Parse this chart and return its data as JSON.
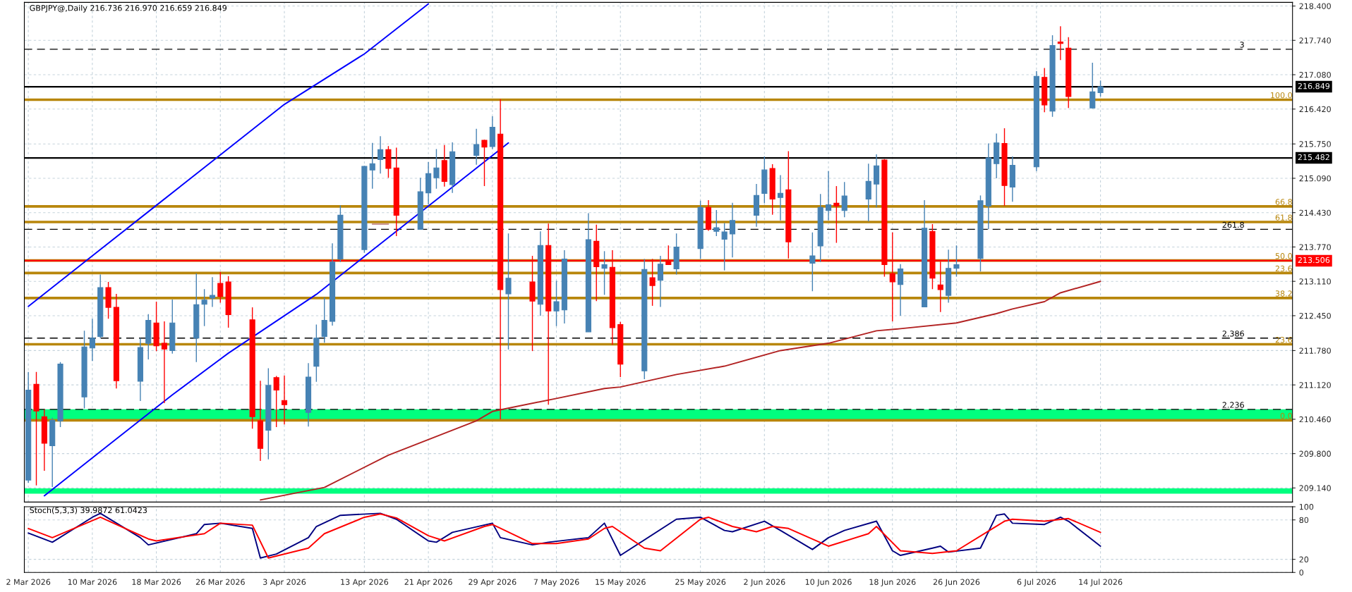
{
  "chart_data": [
    {
      "type": "candlestick",
      "title": "GBPJPY@,Daily 216.736 216.970 216.659 216.849",
      "series": [
        {
          "type": "line",
          "color": "#0000ff",
          "x": [
            "2026-03-02",
            "2026-03-10",
            "2026-03-18",
            "2026-03-26",
            "2026-04-03",
            "2026-04-13",
            "2026-04-21"
          ],
          "values": [
            212.63,
            213.6,
            214.57,
            215.54,
            216.51,
            217.48,
            218.44
          ]
        },
        {
          "type": "line",
          "color": "#0000ff",
          "x": [
            "2026-03-04",
            "2026-03-12",
            "2026-03-20",
            "2026-03-27",
            "2026-04-07",
            "2026-04-15",
            "2026-04-23",
            "2026-05-01"
          ],
          "values": [
            208.99,
            209.96,
            210.93,
            211.73,
            212.86,
            213.83,
            214.8,
            215.77
          ]
        },
        {
          "type": "line",
          "color": "#c89494",
          "x": [
            "2026-04-14",
            "2026-04-16"
          ],
          "values": [
            214.21,
            214.21
          ]
        },
        {
          "type": "line",
          "color": "#b22222",
          "x": [
            "2026-03-31",
            "2026-04-08",
            "2026-04-16",
            "2026-04-27",
            "2026-04-29",
            "2026-05-07",
            "2026-05-13",
            "2026-05-15",
            "2026-05-22",
            "2026-05-28",
            "2026-06-04",
            "2026-06-10",
            "2026-06-16",
            "2026-06-19",
            "2026-06-26",
            "2026-07-01",
            "2026-07-03",
            "2026-07-07",
            "2026-07-09",
            "2026-07-14"
          ],
          "values": [
            208.91,
            209.15,
            209.77,
            210.43,
            210.61,
            210.86,
            211.05,
            211.08,
            211.32,
            211.48,
            211.78,
            211.92,
            212.16,
            212.2,
            212.31,
            212.49,
            212.58,
            212.72,
            212.89,
            213.11
          ]
        },
        {
          "type": "candlestick",
          "x": [
            "2026-03-02",
            "2026-03-03",
            "2026-03-04",
            "2026-03-05",
            "2026-03-06",
            "2026-03-09",
            "2026-03-10",
            "2026-03-11",
            "2026-03-12",
            "2026-03-13",
            "2026-03-16",
            "2026-03-17",
            "2026-03-18",
            "2026-03-19",
            "2026-03-20",
            "2026-03-23",
            "2026-03-24",
            "2026-03-25",
            "2026-03-26",
            "2026-03-27",
            "2026-03-30",
            "2026-03-31",
            "2026-04-01",
            "2026-04-02",
            "2026-04-03",
            "2026-04-06",
            "2026-04-07",
            "2026-04-08",
            "2026-04-09",
            "2026-04-10",
            "2026-04-13",
            "2026-04-14",
            "2026-04-15",
            "2026-04-16",
            "2026-04-17",
            "2026-04-20",
            "2026-04-21",
            "2026-04-22",
            "2026-04-23",
            "2026-04-24",
            "2026-04-27",
            "2026-04-28",
            "2026-04-29",
            "2026-04-30",
            "2026-05-01",
            "2026-05-04",
            "2026-05-05",
            "2026-05-06",
            "2026-05-07",
            "2026-05-08",
            "2026-05-11",
            "2026-05-12",
            "2026-05-13",
            "2026-05-14",
            "2026-05-15",
            "2026-05-18",
            "2026-05-19",
            "2026-05-20",
            "2026-05-21",
            "2026-05-22",
            "2026-05-25",
            "2026-05-26",
            "2026-05-27",
            "2026-05-28",
            "2026-05-29",
            "2026-06-01",
            "2026-06-02",
            "2026-06-03",
            "2026-06-04",
            "2026-06-05",
            "2026-06-08",
            "2026-06-09",
            "2026-06-10",
            "2026-06-11",
            "2026-06-12",
            "2026-06-15",
            "2026-06-16",
            "2026-06-17",
            "2026-06-18",
            "2026-06-19",
            "2026-06-22",
            "2026-06-23",
            "2026-06-24",
            "2026-06-25",
            "2026-06-26",
            "2026-06-29",
            "2026-06-30",
            "2026-07-01",
            "2026-07-02",
            "2026-07-03",
            "2026-07-06",
            "2026-07-07",
            "2026-07-08",
            "2026-07-09",
            "2026-07-10",
            "2026-07-13",
            "2026-07-14"
          ],
          "ohlc": [
            [
              209.29,
              211.37,
              209.24,
              211.02
            ],
            [
              211.13,
              211.37,
              209.19,
              210.62
            ],
            [
              210.51,
              210.65,
              209.47,
              210.0
            ],
            [
              209.95,
              210.49,
              209.16,
              210.44
            ],
            [
              210.43,
              211.56,
              210.31,
              211.52
            ],
            [
              210.89,
              212.16,
              210.67,
              211.85
            ],
            [
              211.83,
              212.39,
              211.58,
              212.02
            ],
            [
              212.05,
              213.24,
              212.02,
              212.99
            ],
            [
              212.99,
              213.1,
              212.39,
              212.61
            ],
            [
              212.61,
              212.87,
              211.05,
              211.2
            ],
            [
              211.19,
              212.02,
              210.81,
              211.84
            ],
            [
              211.92,
              212.48,
              211.61,
              212.36
            ],
            [
              212.31,
              212.72,
              211.77,
              211.87
            ],
            [
              211.92,
              212.34,
              210.77,
              211.81
            ],
            [
              211.78,
              212.76,
              211.72,
              212.31
            ],
            [
              212.02,
              213.26,
              211.56,
              212.66
            ],
            [
              212.67,
              212.96,
              212.25,
              212.75
            ],
            [
              212.79,
              213.19,
              212.62,
              212.84
            ],
            [
              213.07,
              213.29,
              212.7,
              212.82
            ],
            [
              213.1,
              213.21,
              212.22,
              212.47
            ],
            [
              212.37,
              212.61,
              210.28,
              210.51
            ],
            [
              210.43,
              211.2,
              209.66,
              209.9
            ],
            [
              210.25,
              211.44,
              209.69,
              211.11
            ],
            [
              211.26,
              211.29,
              210.31,
              211.02
            ],
            [
              210.82,
              211.3,
              210.36,
              210.74
            ],
            [
              210.59,
              211.54,
              210.32,
              211.27
            ],
            [
              211.48,
              212.28,
              211.18,
              212.02
            ],
            [
              212.05,
              212.8,
              211.93,
              212.36
            ],
            [
              212.34,
              213.84,
              212.26,
              213.48
            ],
            [
              213.54,
              214.57,
              213.48,
              214.38
            ],
            [
              213.72,
              215.33,
              213.66,
              215.32
            ],
            [
              215.25,
              215.77,
              214.89,
              215.37
            ],
            [
              215.45,
              215.9,
              215.18,
              215.64
            ],
            [
              215.64,
              215.71,
              215.1,
              215.28
            ],
            [
              215.29,
              215.68,
              213.98,
              214.38
            ],
            [
              214.11,
              215.1,
              214.11,
              214.83
            ],
            [
              214.81,
              215.4,
              214.59,
              215.18
            ],
            [
              215.1,
              215.65,
              214.89,
              215.29
            ],
            [
              215.43,
              215.73,
              214.93,
              215.03
            ],
            [
              214.97,
              215.78,
              214.81,
              215.6
            ],
            [
              215.53,
              216.04,
              215.35,
              215.74
            ],
            [
              215.82,
              215.83,
              214.94,
              215.69
            ],
            [
              215.7,
              216.28,
              215.65,
              216.07
            ],
            [
              215.94,
              216.61,
              210.46,
              212.95
            ],
            [
              212.87,
              214.03,
              211.8,
              213.17
            ],
            [
              213.1,
              213.6,
              211.77,
              212.73
            ],
            [
              212.67,
              214.07,
              212.45,
              213.8
            ],
            [
              213.8,
              214.22,
              210.74,
              212.54
            ],
            [
              212.54,
              213.12,
              212.25,
              212.72
            ],
            [
              212.56,
              213.71,
              212.3,
              213.54
            ],
            [
              212.14,
              214.42,
              212.14,
              213.91
            ],
            [
              213.88,
              214.2,
              212.73,
              213.39
            ],
            [
              213.36,
              213.69,
              212.85,
              213.43
            ],
            [
              213.38,
              213.71,
              211.89,
              212.22
            ],
            [
              212.28,
              212.33,
              211.27,
              211.52
            ],
            [
              211.39,
              213.54,
              211.23,
              213.34
            ],
            [
              213.18,
              213.54,
              212.64,
              213.03
            ],
            [
              213.13,
              213.6,
              212.62,
              213.44
            ],
            [
              213.49,
              213.8,
              213.43,
              213.43
            ],
            [
              213.35,
              214.03,
              213.24,
              213.77
            ],
            [
              213.74,
              214.66,
              213.54,
              214.53
            ],
            [
              214.53,
              214.67,
              214.08,
              214.11
            ],
            [
              214.07,
              214.48,
              213.98,
              214.14
            ],
            [
              213.92,
              214.23,
              213.32,
              214.06
            ],
            [
              214.02,
              214.62,
              213.57,
              214.28
            ],
            [
              214.38,
              214.98,
              214.16,
              214.76
            ],
            [
              214.8,
              215.51,
              214.61,
              215.25
            ],
            [
              215.28,
              215.36,
              214.39,
              214.69
            ],
            [
              214.72,
              215.15,
              214.28,
              214.8
            ],
            [
              214.87,
              215.61,
              213.55,
              213.87
            ],
            [
              213.46,
              214.05,
              212.92,
              213.6
            ],
            [
              213.79,
              214.79,
              213.48,
              214.53
            ],
            [
              214.47,
              215.23,
              214.28,
              214.58
            ],
            [
              214.61,
              214.94,
              213.85,
              214.56
            ],
            [
              214.47,
              215.02,
              214.34,
              214.75
            ],
            [
              214.69,
              215.37,
              214.26,
              215.03
            ],
            [
              214.98,
              215.55,
              214.53,
              215.33
            ],
            [
              215.44,
              215.46,
              213.2,
              213.43
            ],
            [
              213.26,
              214.05,
              212.34,
              213.1
            ],
            [
              213.05,
              213.44,
              212.45,
              213.35
            ],
            [
              212.62,
              214.67,
              212.62,
              214.13
            ],
            [
              214.07,
              214.21,
              212.96,
              213.17
            ],
            [
              213.04,
              213.49,
              212.52,
              212.95
            ],
            [
              212.84,
              213.72,
              212.7,
              213.36
            ],
            [
              213.36,
              213.8,
              213.2,
              213.43
            ],
            [
              213.55,
              214.76,
              213.3,
              214.66
            ],
            [
              214.56,
              215.76,
              214.11,
              215.48
            ],
            [
              215.37,
              215.95,
              215.09,
              215.77
            ],
            [
              215.76,
              216.05,
              214.56,
              214.95
            ],
            [
              214.92,
              215.51,
              214.64,
              215.34
            ],
            [
              215.31,
              217.15,
              215.23,
              217.05
            ],
            [
              217.03,
              217.21,
              216.36,
              216.5
            ],
            [
              216.38,
              217.84,
              216.27,
              217.64
            ],
            [
              217.71,
              218.01,
              217.36,
              217.68
            ],
            [
              217.59,
              217.8,
              216.44,
              216.66
            ],
            [
              216.44,
              217.31,
              216.43,
              216.75
            ],
            [
              216.736,
              216.97,
              216.659,
              216.849
            ]
          ],
          "colors": [
            "#4682b4",
            "#ff0000",
            "#ff0000",
            "#4682b4",
            "#4682b4",
            "#4682b4",
            "#4682b4",
            "#4682b4",
            "#ff0000",
            "#ff0000",
            "#4682b4",
            "#4682b4",
            "#ff0000",
            "#ff0000",
            "#4682b4",
            "#4682b4",
            "#4682b4",
            "#4682b4",
            "#ff0000",
            "#ff0000",
            "#ff0000",
            "#ff0000",
            "#4682b4",
            "#ff0000",
            "#ff0000",
            "#4682b4",
            "#4682b4",
            "#4682b4",
            "#4682b4",
            "#4682b4",
            "#4682b4",
            "#4682b4",
            "#4682b4",
            "#ff0000",
            "#ff0000",
            "#4682b4",
            "#4682b4",
            "#4682b4",
            "#ff0000",
            "#4682b4",
            "#4682b4",
            "#ff0000",
            "#4682b4",
            "#ff0000",
            "#4682b4",
            "#ff0000",
            "#4682b4",
            "#ff0000",
            "#4682b4",
            "#4682b4",
            "#4682b4",
            "#ff0000",
            "#4682b4",
            "#ff0000",
            "#ff0000",
            "#4682b4",
            "#ff0000",
            "#4682b4",
            "#ff0000",
            "#4682b4",
            "#4682b4",
            "#ff0000",
            "#4682b4",
            "#4682b4",
            "#4682b4",
            "#4682b4",
            "#4682b4",
            "#ff0000",
            "#4682b4",
            "#ff0000",
            "#4682b4",
            "#4682b4",
            "#4682b4",
            "#ff0000",
            "#4682b4",
            "#4682b4",
            "#4682b4",
            "#ff0000",
            "#ff0000",
            "#4682b4",
            "#4682b4",
            "#ff0000",
            "#ff0000",
            "#4682b4",
            "#4682b4",
            "#4682b4",
            "#4682b4",
            "#4682b4",
            "#ff0000",
            "#4682b4",
            "#4682b4",
            "#ff0000",
            "#4682b4",
            "#ff0000",
            "#ff0000",
            "#4682b4",
            "#4682b4"
          ]
        }
      ],
      "bands": [
        {
          "axis": "y",
          "from": 210.46,
          "to": 210.65,
          "color": "#00ff7f"
        },
        {
          "axis": "y",
          "from": 209.03,
          "to": 209.13,
          "color": "#00ff7f"
        }
      ],
      "ref_lines": [
        {
          "axis": "y",
          "value": 216.6,
          "color": "#b8860b"
        },
        {
          "axis": "y",
          "value": 214.55,
          "color": "#b8860b"
        },
        {
          "axis": "y",
          "value": 214.25,
          "color": "#b8860b"
        },
        {
          "axis": "y",
          "value": 213.51,
          "color": "#b8860b"
        },
        {
          "axis": "y",
          "value": 213.27,
          "color": "#b8860b"
        },
        {
          "axis": "y",
          "value": 212.79,
          "color": "#b8860b"
        },
        {
          "axis": "y",
          "value": 211.9,
          "color": "#b8860b"
        },
        {
          "axis": "y",
          "value": 210.44,
          "color": "#b8860b"
        },
        {
          "axis": "y",
          "value": 217.57,
          "color": "#000000",
          "line_style": "dashed"
        },
        {
          "axis": "y",
          "value": 214.11,
          "color": "#000000",
          "line_style": "dashed"
        },
        {
          "axis": "y",
          "value": 212.02,
          "color": "#000000",
          "line_style": "dashed"
        },
        {
          "axis": "y",
          "value": 210.65,
          "color": "#000000",
          "line_style": "dashed"
        },
        {
          "axis": "y",
          "value": 216.849,
          "label": "216.849",
          "color": "#000000",
          "line_style": "solid"
        },
        {
          "axis": "y",
          "value": 215.482,
          "label": "215.482",
          "color": "#000000",
          "line_style": "solid"
        },
        {
          "axis": "y",
          "value": 213.506,
          "label": "213.506",
          "color": "#ff0000",
          "line_style": "solid"
        }
      ],
      "annotations": [
        {
          "text": "100.0",
          "x": "2026-08-07",
          "y": 216.6
        },
        {
          "text": "66.8",
          "x": "2026-08-07",
          "y": 214.55
        },
        {
          "text": "61.8",
          "x": "2026-08-07",
          "y": 214.25
        },
        {
          "text": "50.0",
          "x": "2026-08-07",
          "y": 213.51
        },
        {
          "text": "23.6",
          "x": "2026-08-07",
          "y": 213.27
        },
        {
          "text": "38.2",
          "x": "2026-08-07",
          "y": 212.79
        },
        {
          "text": "23.6",
          "x": "2026-08-07",
          "y": 211.9
        },
        {
          "text": "0.0",
          "x": "2026-08-07",
          "y": 210.44
        },
        {
          "text": "3",
          "x": "2026-08-01",
          "y": 217.57
        },
        {
          "text": "261.8",
          "x": "2026-08-01",
          "y": 214.11
        },
        {
          "text": "2.386",
          "x": "2026-08-01",
          "y": 212.02
        },
        {
          "text": "2.236",
          "x": "2026-08-01",
          "y": 210.65
        }
      ],
      "xlim": [
        "2026-03-01T12:00",
        "2026-08-07"
      ],
      "xticks": [
        {
          "value": "2026-03-02",
          "label": null
        },
        {
          "value": "2026-03-10",
          "label": null
        },
        {
          "value": "2026-03-18",
          "label": null
        },
        {
          "value": "2026-03-26",
          "label": null
        },
        {
          "value": "2026-04-03",
          "label": null
        },
        {
          "value": "2026-04-13",
          "label": null
        },
        {
          "value": "2026-04-21",
          "label": null
        },
        {
          "value": "2026-04-29",
          "label": null
        },
        {
          "value": "2026-05-07",
          "label": null
        },
        {
          "value": "2026-05-15",
          "label": null
        },
        {
          "value": "2026-05-25",
          "label": null
        },
        {
          "value": "2026-06-02",
          "label": null
        },
        {
          "value": "2026-06-10",
          "label": null
        },
        {
          "value": "2026-06-18",
          "label": null
        },
        {
          "value": "2026-06-26",
          "label": null
        },
        {
          "value": "2026-07-06",
          "label": null
        },
        {
          "value": "2026-07-14",
          "label": null
        }
      ],
      "ylim": [
        208.87,
        218.47
      ],
      "yticks": [
        {
          "value": 218.4,
          "label": "218.400"
        },
        {
          "value": 217.74,
          "label": "217.740"
        },
        {
          "value": 217.08,
          "label": "217.080"
        },
        {
          "value": 216.42,
          "label": "216.420"
        },
        {
          "value": 215.75,
          "label": "215.750"
        },
        {
          "value": 215.09,
          "label": "215.090"
        },
        {
          "value": 214.43,
          "label": "214.430"
        },
        {
          "value": 213.77,
          "label": "213.770"
        },
        {
          "value": 213.11,
          "label": "213.110"
        },
        {
          "value": 212.45,
          "label": "212.450"
        },
        {
          "value": 211.78,
          "label": "211.780"
        },
        {
          "value": 211.12,
          "label": "211.120"
        },
        {
          "value": 210.46,
          "label": "210.460"
        },
        {
          "value": 209.8,
          "label": "209.800"
        },
        {
          "value": 209.14,
          "label": "209.140"
        }
      ],
      "tick_labels": "y",
      "grid": true
    },
    {
      "type": "line",
      "title": "Stoch(5,3,3) 39.9872 61.0423",
      "series": [
        {
          "color": "#000080",
          "x": [
            "2026-03-02",
            "2026-03-05",
            "2026-03-10",
            "2026-03-11",
            "2026-03-16",
            "2026-03-17",
            "2026-03-23",
            "2026-03-24",
            "2026-03-26",
            "2026-03-30",
            "2026-03-31",
            "2026-04-02",
            "2026-04-06",
            "2026-04-07",
            "2026-04-10",
            "2026-04-15",
            "2026-04-17",
            "2026-04-21",
            "2026-04-22",
            "2026-04-24",
            "2026-04-29",
            "2026-04-30",
            "2026-05-04",
            "2026-05-06",
            "2026-05-11",
            "2026-05-13",
            "2026-05-15",
            "2026-05-22",
            "2026-05-25",
            "2026-05-28",
            "2026-05-29",
            "2026-06-02",
            "2026-06-04",
            "2026-06-08",
            "2026-06-10",
            "2026-06-12",
            "2026-06-16",
            "2026-06-18",
            "2026-06-19",
            "2026-06-23",
            "2026-06-24",
            "2026-06-25",
            "2026-06-29",
            "2026-07-01",
            "2026-07-02",
            "2026-07-03",
            "2026-07-07",
            "2026-07-09",
            "2026-07-10",
            "2026-07-14"
          ],
          "values": [
            60,
            46,
            84,
            90,
            53,
            42,
            59,
            73,
            75,
            67,
            22,
            28,
            53,
            70,
            87,
            90,
            81,
            48,
            46,
            61,
            75,
            53,
            42,
            46,
            53,
            75,
            26,
            81,
            84,
            64,
            62,
            78,
            64,
            35,
            53,
            64,
            78,
            33,
            26,
            37,
            40,
            31,
            37,
            87,
            89,
            75,
            73,
            84,
            78,
            40
          ]
        },
        {
          "color": "#ff0000",
          "x": [
            "2026-03-02",
            "2026-03-05",
            "2026-03-11",
            "2026-03-17",
            "2026-03-18",
            "2026-03-24",
            "2026-03-26",
            "2026-03-30",
            "2026-04-01",
            "2026-04-06",
            "2026-04-08",
            "2026-04-13",
            "2026-04-15",
            "2026-04-17",
            "2026-04-21",
            "2026-04-23",
            "2026-04-28",
            "2026-04-29",
            "2026-05-04",
            "2026-05-07",
            "2026-05-11",
            "2026-05-13",
            "2026-05-14",
            "2026-05-18",
            "2026-05-20",
            "2026-05-25",
            "2026-05-26",
            "2026-05-29",
            "2026-06-01",
            "2026-06-03",
            "2026-06-05",
            "2026-06-10",
            "2026-06-15",
            "2026-06-16",
            "2026-06-19",
            "2026-06-23",
            "2026-06-26",
            "2026-07-02",
            "2026-07-03",
            "2026-07-07",
            "2026-07-10",
            "2026-07-14"
          ],
          "values": [
            67,
            53,
            84,
            51,
            48,
            59,
            75,
            72,
            22,
            37,
            59,
            84,
            89,
            83,
            56,
            48,
            70,
            73,
            44,
            44,
            51,
            67,
            70,
            37,
            33,
            81,
            84,
            70,
            62,
            70,
            67,
            40,
            59,
            70,
            33,
            29,
            33,
            78,
            81,
            78,
            82,
            61
          ]
        }
      ],
      "xlim": [
        "2026-03-01T12:00",
        "2026-08-07"
      ],
      "xticks": [
        {
          "value": "2026-03-02",
          "label": "2 Mar 2026"
        },
        {
          "value": "2026-03-10",
          "label": "10 Mar 2026"
        },
        {
          "value": "2026-03-18",
          "label": "18 Mar 2026"
        },
        {
          "value": "2026-03-26",
          "label": "26 Mar 2026"
        },
        {
          "value": "2026-04-03",
          "label": "3 Apr 2026"
        },
        {
          "value": "2026-04-13",
          "label": "13 Apr 2026"
        },
        {
          "value": "2026-04-21",
          "label": "21 Apr 2026"
        },
        {
          "value": "2026-04-29",
          "label": "29 Apr 2026"
        },
        {
          "value": "2026-05-07",
          "label": "7 May 2026"
        },
        {
          "value": "2026-05-15",
          "label": "15 May 2026"
        },
        {
          "value": "2026-05-25",
          "label": "25 May 2026"
        },
        {
          "value": "2026-06-02",
          "label": "2 Jun 2026"
        },
        {
          "value": "2026-06-10",
          "label": "10 Jun 2026"
        },
        {
          "value": "2026-06-18",
          "label": "18 Jun 2026"
        },
        {
          "value": "2026-06-26",
          "label": "26 Jun 2026"
        },
        {
          "value": "2026-07-06",
          "label": "6 Jul 2026"
        },
        {
          "value": "2026-07-14",
          "label": "14 Jul 2026"
        }
      ],
      "ylim": [
        0,
        100
      ],
      "yticks": [
        100,
        80,
        20,
        0
      ],
      "grid": true
    }
  ]
}
